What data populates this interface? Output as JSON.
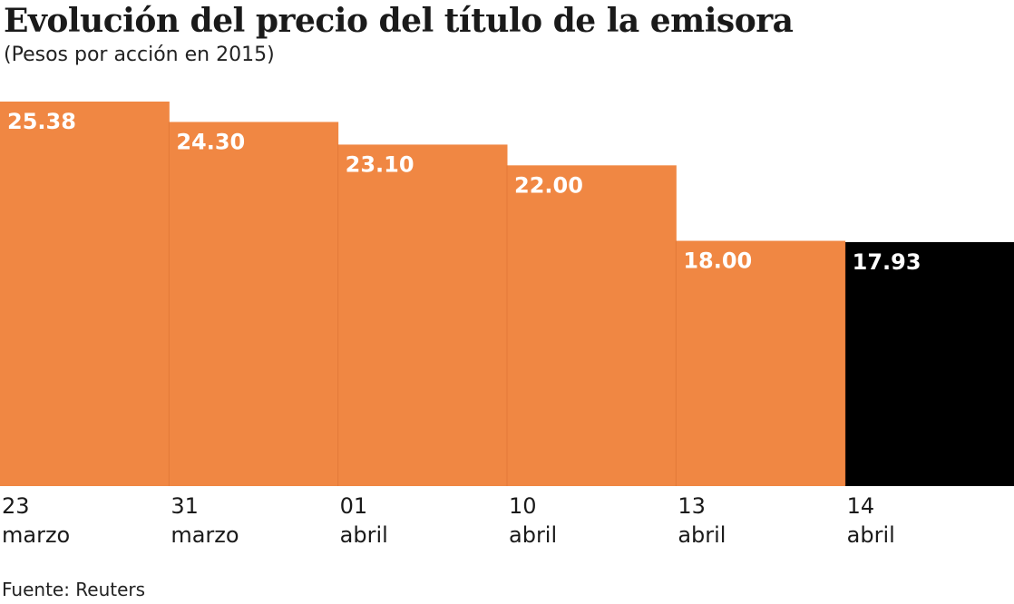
{
  "header": {
    "title": "Evolución del precio del título de la emisora",
    "subtitle": "(Pesos por acción en 2015)"
  },
  "footer": {
    "source": "Fuente: Reuters"
  },
  "colors": {
    "bar": "#f08743",
    "highlight": "#000000",
    "label_text": "#ffffff"
  },
  "chart_data": {
    "type": "bar",
    "title": "Evolución del precio del título de la emisora",
    "subtitle": "(Pesos por acción en 2015)",
    "xlabel": "",
    "ylabel": "",
    "ylim": [
      0,
      25.38
    ],
    "grid": false,
    "categories": [
      [
        "23",
        "marzo"
      ],
      [
        "31",
        "marzo"
      ],
      [
        "01",
        "abril"
      ],
      [
        "10",
        "abril"
      ],
      [
        "13",
        "abril"
      ],
      [
        "14",
        "abril"
      ]
    ],
    "values": [
      25.38,
      24.3,
      23.1,
      22.0,
      18.0,
      17.93
    ],
    "value_labels": [
      "25.38",
      "24.30",
      "23.10",
      "22.00",
      "18.00",
      "17.93"
    ],
    "highlight_index": 5
  }
}
